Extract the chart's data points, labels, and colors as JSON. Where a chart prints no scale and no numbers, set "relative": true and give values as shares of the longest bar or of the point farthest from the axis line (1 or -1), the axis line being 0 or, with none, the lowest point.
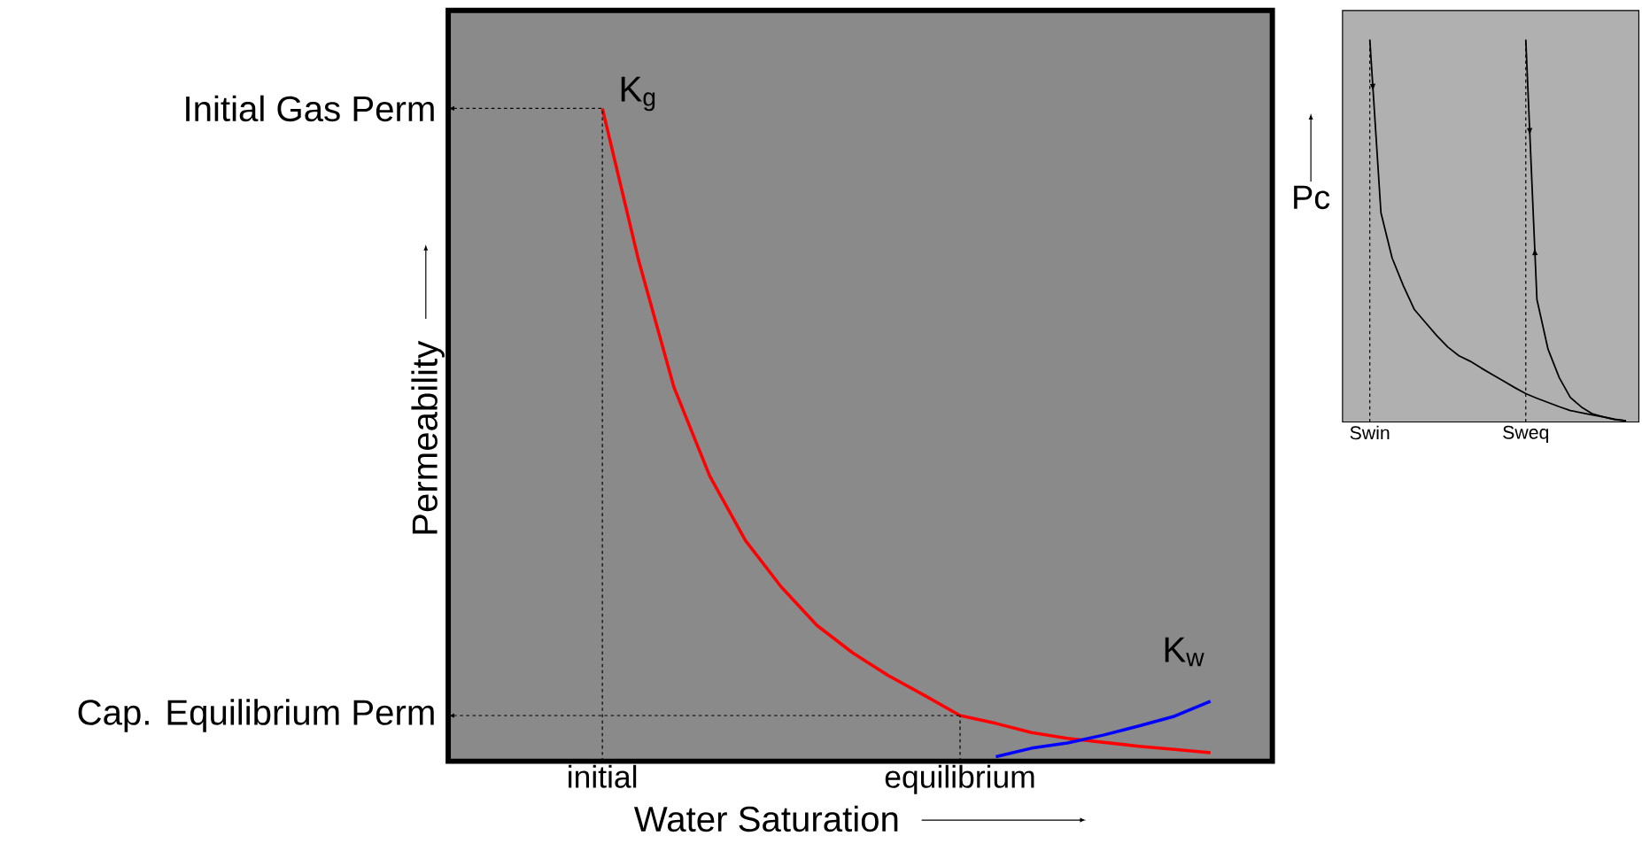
{
  "chart_data": [
    {
      "type": "line",
      "relative": true,
      "xlabel": "Water Saturation",
      "ylabel": "Permeability",
      "categories": [
        null,
        null,
        null,
        null,
        "initial",
        null,
        null,
        null,
        null,
        null,
        null,
        null,
        null,
        null,
        "equilibrium",
        null,
        null,
        null,
        null,
        null,
        null,
        null
      ],
      "series": [
        {
          "name": "K$_{g}$",
          "color": "#ff0000",
          "values": [
            null,
            null,
            null,
            null,
            1,
            0.77,
            0.573,
            0.437,
            0.338,
            0.267,
            0.208,
            0.166,
            0.131,
            0.101,
            0.07,
            0.058,
            0.044,
            0.035,
            0.029,
            0.023,
            0.018,
            0.013
          ]
        },
        {
          "name": "K$_{w}$",
          "color": "#0000ff",
          "values": [
            null,
            null,
            null,
            null,
            null,
            null,
            null,
            null,
            null,
            null,
            null,
            null,
            null,
            null,
            null,
            0.007,
            0.02,
            0.028,
            0.04,
            0.054,
            0.069,
            0.092
          ]
        }
      ],
      "annotations": [
        {
          "text": "Initial Gas Perm",
          "x": "initial",
          "y": 1
        },
        {
          "text": "Cap. Equilibrium Perm",
          "x": "equilibrium",
          "y": 0.07
        }
      ]
    },
    {
      "type": "line",
      "relative": true,
      "ylabel": "Pc",
      "categories": [
        null,
        "Swin",
        null,
        null,
        null,
        null,
        null,
        null,
        null,
        null,
        null,
        null,
        null,
        null,
        null,
        "Sweq",
        null,
        null,
        null,
        null,
        null,
        null,
        null,
        null,
        null
      ],
      "series": [
        {
          "color": "#000000",
          "values": [
            null,
            1,
            0.547,
            0.429,
            0.357,
            0.294,
            0.26,
            0.226,
            0.196,
            0.173,
            0.159,
            0.141,
            0.124,
            0.107,
            0.09,
            0.074,
            0.062,
            0.051,
            0.04,
            0.03,
            0.024,
            0.018,
            0.013,
            0.007,
            0.003
          ]
        },
        {
          "color": "#000000",
          "values": [
            null,
            null,
            null,
            null,
            null,
            null,
            null,
            null,
            null,
            null,
            null,
            null,
            null,
            null,
            null,
            1,
            0.32,
            0.19,
            0.116,
            0.064,
            0.039,
            0.021,
            0.013,
            0.006,
            0.003
          ]
        }
      ]
    }
  ]
}
